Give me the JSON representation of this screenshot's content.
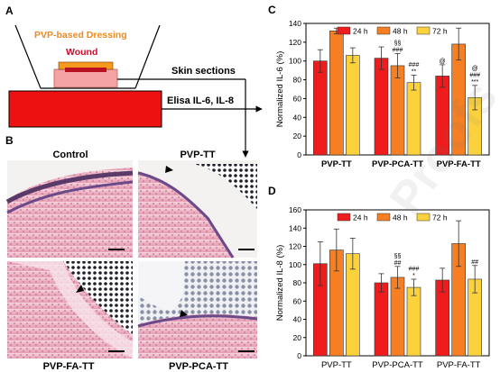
{
  "panels": {
    "a": {
      "letter": "A",
      "dressing_label": "PVP-based Dressing",
      "wound_label": "Wound",
      "skin_sections_label": "Skin sections",
      "elisa_label": "Elisa IL-6, IL-8",
      "colors": {
        "dressing_text": "#f08a1c",
        "wound_text": "#c8102e",
        "medium": "#ee1111",
        "skin": "#f5a3a3",
        "dressing": "#f59a1c",
        "wound": "#b81020"
      }
    },
    "b": {
      "letter": "B",
      "images": [
        {
          "label": "Control"
        },
        {
          "label": "PVP-TT"
        },
        {
          "label": "PVP-FA-TT"
        },
        {
          "label": "PVP-PCA-TT"
        }
      ]
    },
    "c": {
      "letter": "C"
    },
    "d": {
      "letter": "D"
    }
  },
  "watermark": "Proofs",
  "chart_data": [
    {
      "type": "bar",
      "panel": "C",
      "ylabel": "Normalized IL-6 (%)",
      "ylim": [
        0,
        140
      ],
      "yticks": [
        "0",
        "20",
        "40",
        "60",
        "80",
        "100",
        "120",
        "140"
      ],
      "categories": [
        "PVP-TT",
        "PVP-PCA-TT",
        "PVP-FA-TT"
      ],
      "category_labels_bold": true,
      "legend_position": "top",
      "series": [
        {
          "name": "24 h",
          "color": "#ee1c1c",
          "values": [
            100,
            103,
            84
          ],
          "errors": [
            12,
            12,
            12
          ]
        },
        {
          "name": "48 h",
          "color": "#f57f22",
          "values": [
            132,
            95,
            118
          ],
          "errors": [
            3,
            13,
            17
          ]
        },
        {
          "name": "72 h",
          "color": "#fbd23c",
          "values": [
            106,
            77,
            61
          ],
          "errors": [
            8,
            8,
            13
          ]
        }
      ],
      "annotations": [
        {
          "category": 1,
          "series": 1,
          "lines": [
            "§§",
            "###"
          ]
        },
        {
          "category": 1,
          "series": 2,
          "lines": [
            "###",
            "**"
          ]
        },
        {
          "category": 2,
          "series": 0,
          "lines": [
            "@"
          ]
        },
        {
          "category": 2,
          "series": 2,
          "lines": [
            "@",
            "###",
            "***"
          ]
        }
      ]
    },
    {
      "type": "bar",
      "panel": "D",
      "ylabel": "Normalized IL-8 (%)",
      "ylim": [
        0,
        160
      ],
      "yticks": [
        "0",
        "20",
        "40",
        "60",
        "80",
        "100",
        "120",
        "140",
        "160"
      ],
      "categories": [
        "PVP-TT",
        "PVP-PCA-TT",
        "PVP-FA-TT"
      ],
      "category_labels_bold": false,
      "legend_position": "top",
      "series": [
        {
          "name": "24 h",
          "color": "#ee1c1c",
          "values": [
            101,
            80,
            83
          ],
          "errors": [
            24,
            10,
            13
          ]
        },
        {
          "name": "48 h",
          "color": "#f57f22",
          "values": [
            116,
            86,
            123
          ],
          "errors": [
            23,
            12,
            25
          ]
        },
        {
          "name": "72 h",
          "color": "#fbd23c",
          "values": [
            112,
            75,
            84
          ],
          "errors": [
            17,
            9,
            15
          ]
        }
      ],
      "annotations": [
        {
          "category": 1,
          "series": 1,
          "lines": [
            "§§",
            "##"
          ]
        },
        {
          "category": 1,
          "series": 2,
          "lines": [
            "###",
            "*"
          ]
        },
        {
          "category": 2,
          "series": 2,
          "lines": [
            "##"
          ]
        }
      ]
    }
  ]
}
